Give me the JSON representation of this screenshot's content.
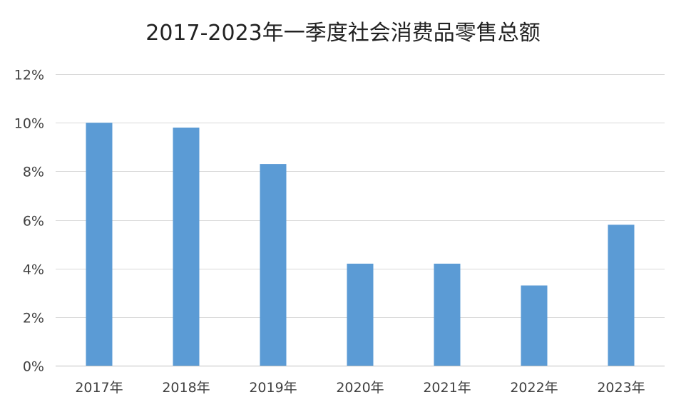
{
  "chart_data": {
    "type": "bar",
    "title": "2017-2023年一季度社会消费品零售总额",
    "xlabel": "",
    "ylabel": "",
    "categories": [
      "2017年",
      "2018年",
      "2019年",
      "2020年",
      "2021年",
      "2022年",
      "2023年"
    ],
    "values": [
      10.0,
      9.8,
      8.3,
      4.2,
      4.2,
      3.3,
      5.8
    ],
    "ylim": [
      0,
      12
    ],
    "yticks": [
      0,
      2,
      4,
      6,
      8,
      10,
      12
    ],
    "ytick_labels": [
      "0%",
      "2%",
      "4%",
      "6%",
      "8%",
      "10%",
      "12%"
    ],
    "grid": true,
    "legend": "none",
    "bar_color": "#5b9bd5"
  }
}
